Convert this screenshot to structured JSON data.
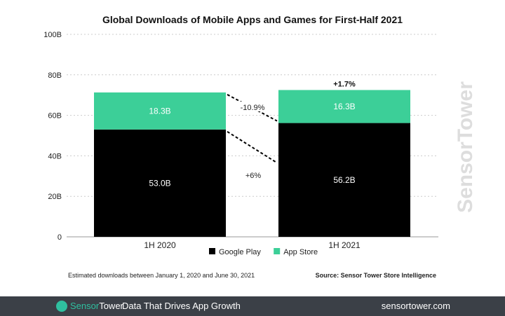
{
  "chart_data": {
    "type": "bar",
    "stacked": true,
    "title": "Global Downloads of Mobile Apps and Games for First-Half 2021",
    "categories": [
      "1H 2020",
      "1H 2021"
    ],
    "series": [
      {
        "name": "Google Play",
        "values": [
          53.0,
          56.2
        ],
        "labels": [
          "53.0B",
          "56.2B"
        ],
        "color": "#000000"
      },
      {
        "name": "App Store",
        "values": [
          18.3,
          16.3
        ],
        "labels": [
          "18.3B",
          "16.3B"
        ],
        "color": "#3ccf98"
      }
    ],
    "ylim": [
      0,
      100
    ],
    "yticks": [
      "0",
      "20B",
      "40B",
      "60B",
      "80B",
      "100B"
    ],
    "grid": true,
    "legend": "bottom-center",
    "annotations": {
      "total_change": "+1.7%",
      "app_store_change": "-10.9%",
      "google_play_change": "+6%"
    }
  },
  "footnote": "Estimated downloads between January 1, 2020 and June 30, 2021",
  "source": "Source: Sensor Tower Store Intelligence",
  "footer": {
    "brand_a": "Sensor",
    "brand_b": "Tower",
    "tagline": "Data That Drives App Growth",
    "url": "sensortower.com"
  },
  "watermark": "SensorTower"
}
